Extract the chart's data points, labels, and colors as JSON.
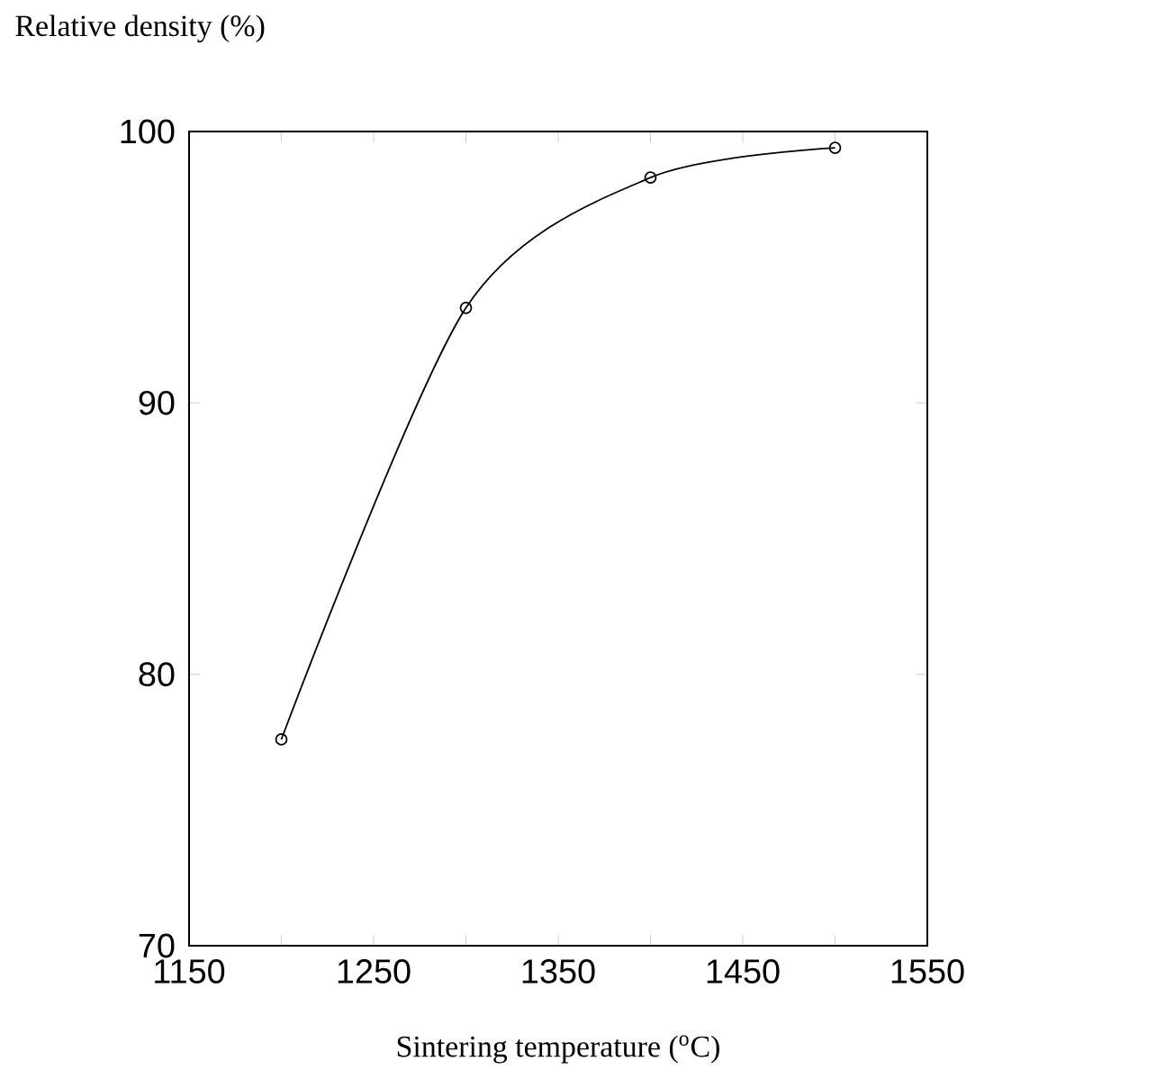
{
  "chart_data": {
    "type": "line",
    "xlabel": "Sintering temperature ($^{o}$C)",
    "ylabel": "Relative density (%)",
    "x": [
      1200,
      1300,
      1400,
      1500
    ],
    "series": [
      {
        "color": "#000000",
        "values": [
          77.6,
          93.5,
          98.3,
          99.4
        ]
      }
    ],
    "xlim": [
      1150,
      1550
    ],
    "ylim": [
      70,
      100
    ],
    "xticks": [
      1150,
      {
        "value": 1200,
        "label": null
      },
      1250,
      {
        "value": 1300,
        "label": null
      },
      1350,
      {
        "value": 1400,
        "label": null
      },
      1450,
      {
        "value": 1500,
        "label": null
      },
      1550
    ],
    "yticks": [
      70,
      80,
      90,
      100
    ],
    "marker": "circle",
    "line_style": "solid"
  }
}
